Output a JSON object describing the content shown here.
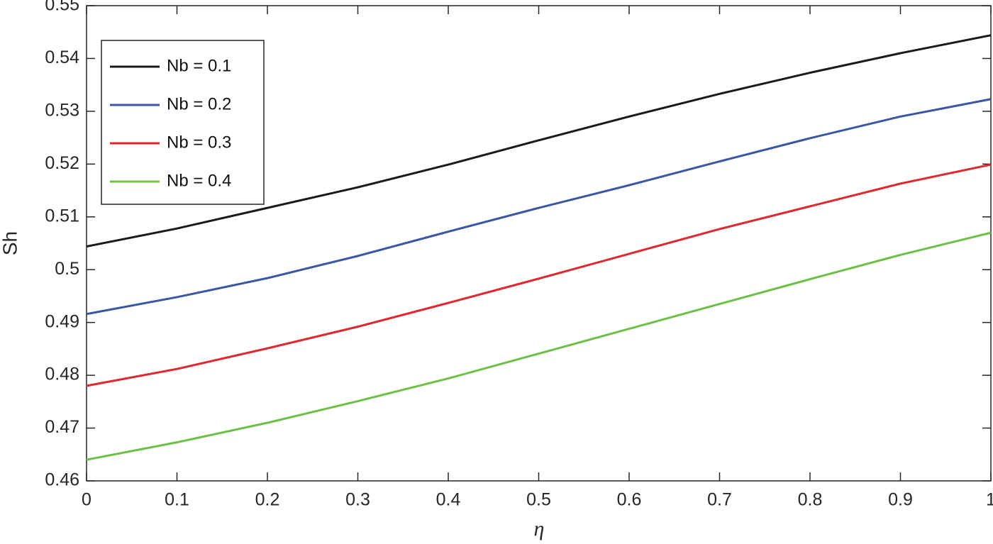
{
  "chart_data": {
    "type": "line",
    "x": [
      0,
      0.1,
      0.2,
      0.3,
      0.4,
      0.5,
      0.6,
      0.7,
      0.8,
      0.9,
      1
    ],
    "series": [
      {
        "name": "Nb = 0.1",
        "color": "#1a1a1a",
        "values": [
          0.5044,
          0.5078,
          0.5117,
          0.5156,
          0.5199,
          0.5245,
          0.529,
          0.5333,
          0.5373,
          0.541,
          0.5444
        ]
      },
      {
        "name": "Nb = 0.2",
        "color": "#3a56a5",
        "values": [
          0.4916,
          0.4948,
          0.4984,
          0.5026,
          0.5072,
          0.5117,
          0.516,
          0.5205,
          0.5249,
          0.529,
          0.5323
        ]
      },
      {
        "name": "Nb = 0.3",
        "color": "#e0282e",
        "values": [
          0.478,
          0.4812,
          0.4851,
          0.4892,
          0.4937,
          0.4983,
          0.503,
          0.5077,
          0.512,
          0.5163,
          0.5199
        ]
      },
      {
        "name": "Nb = 0.4",
        "color": "#6dbf45",
        "values": [
          0.464,
          0.4673,
          0.471,
          0.4751,
          0.4794,
          0.4841,
          0.4888,
          0.4935,
          0.4982,
          0.5028,
          0.507
        ]
      }
    ],
    "xlabel": "η",
    "ylabel": "Sh",
    "xlim": [
      0,
      1
    ],
    "xticks": [
      0,
      0.1,
      0.2,
      0.3,
      0.4,
      0.5,
      0.6,
      0.7,
      0.8,
      0.9,
      1
    ],
    "ylim": [
      0.46,
      0.55
    ],
    "yticks": [
      0.46,
      0.47,
      0.48,
      0.49,
      0.5,
      0.51,
      0.52,
      0.53,
      0.54,
      0.55
    ],
    "grid": false,
    "legend": "upper-left"
  }
}
